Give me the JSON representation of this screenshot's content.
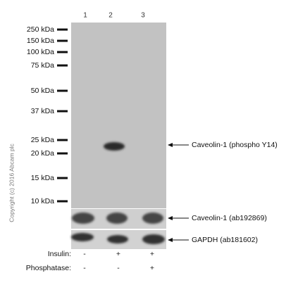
{
  "lanes": [
    "1",
    "2",
    "3"
  ],
  "markers": [
    "250 kDa",
    "150 kDa",
    "100 kDa",
    "75 kDa",
    "50 kDa",
    "37 kDa",
    "25 kDa",
    "20 kDa",
    "15 kDa",
    "10 kDa"
  ],
  "annotations": [
    "Caveolin-1 (phospho Y14)",
    "Caveolin-1 (ab192869)",
    "GAPDH (ab181602)"
  ],
  "treatments": [
    {
      "label": "Insulin:",
      "signs": [
        "-",
        "+",
        "+"
      ]
    },
    {
      "label": "Phosphatase:",
      "signs": [
        "-",
        "-",
        "+"
      ]
    }
  ],
  "copyright": "Copyright (c) 2016 Abcam plc"
}
